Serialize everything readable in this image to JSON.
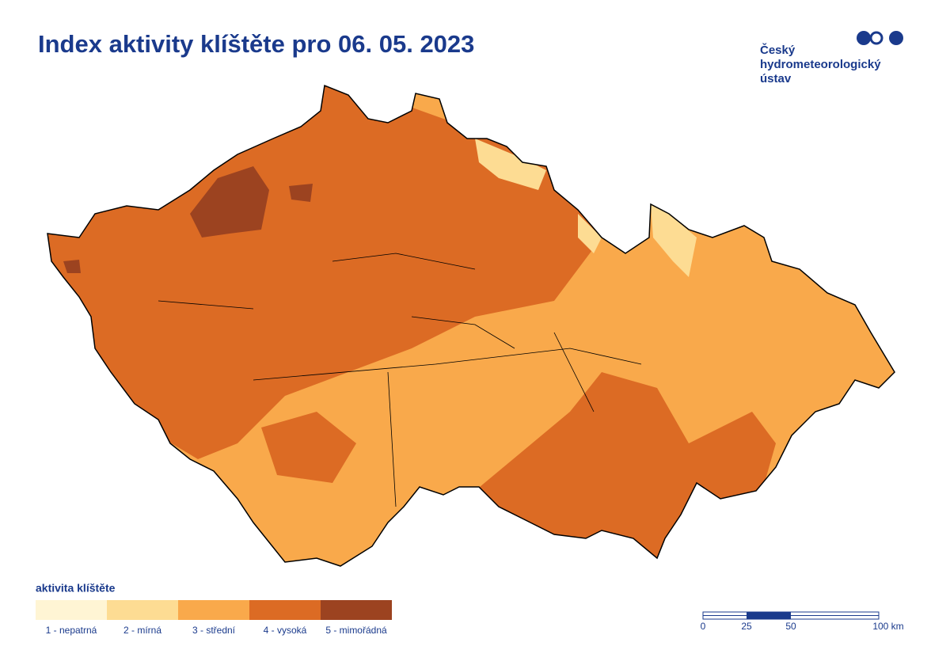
{
  "header": {
    "title": "Index aktivity klíštěte pro 06. 05. 2023"
  },
  "logo": {
    "lines": [
      "Český",
      "hydrometeorologický",
      "ústav"
    ]
  },
  "legend": {
    "title": "aktivita klíštěte",
    "items": [
      {
        "label": "1 - nepatrná",
        "color": "#fff5d4"
      },
      {
        "label": "2 - mírná",
        "color": "#fddc93"
      },
      {
        "label": "3 - střední",
        "color": "#f9a94b"
      },
      {
        "label": "4 - vysoká",
        "color": "#dc6b24"
      },
      {
        "label": "5 - mimořádná",
        "color": "#9c4320"
      }
    ]
  },
  "scale": {
    "labels": [
      "0",
      "25",
      "50",
      "100 km"
    ]
  }
}
